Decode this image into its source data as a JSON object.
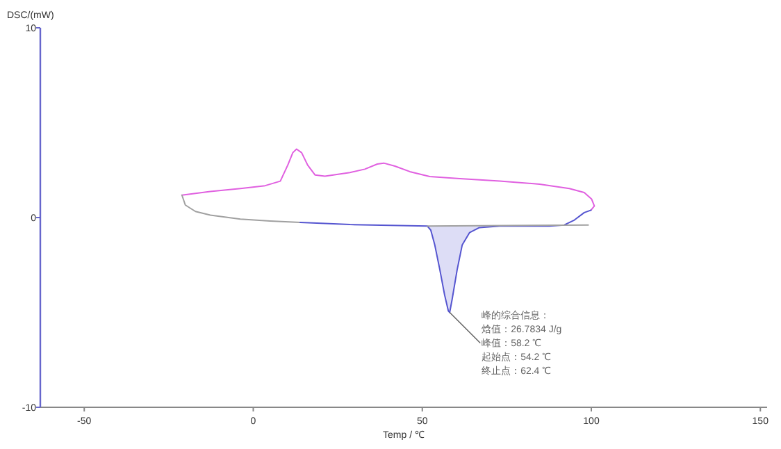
{
  "chart_data": {
    "type": "line",
    "xlabel": "Temp / ℃",
    "ylabel": "DSC/(mW)",
    "xlim": [
      -63,
      152
    ],
    "ylim": [
      -10,
      10
    ],
    "xticks": [
      -50,
      0,
      50,
      100,
      150
    ],
    "yticks": [
      -10,
      0,
      10
    ],
    "grid": false,
    "marker": "none",
    "line_style": "solid",
    "series": [
      {
        "color": "#e060e0",
        "x": [
          -21.1,
          -12.7,
          -3.8,
          3.5,
          8.0,
          10.2,
          11.7,
          12.8,
          14.3,
          16.1,
          18.3,
          21.2,
          28.6,
          33.0,
          36.7,
          38.6,
          41.9,
          46.3,
          52.2,
          61.1,
          72.9,
          84.7,
          93.5,
          97.9,
          100.1,
          100.9,
          99.9
        ],
        "values": [
          1.18,
          1.37,
          1.53,
          1.68,
          1.92,
          2.76,
          3.42,
          3.61,
          3.42,
          2.76,
          2.24,
          2.18,
          2.37,
          2.55,
          2.82,
          2.87,
          2.71,
          2.42,
          2.16,
          2.05,
          1.92,
          1.76,
          1.53,
          1.32,
          0.97,
          0.61,
          0.39
        ]
      },
      {
        "color": "#a0a0a0",
        "x": [
          -21.1,
          -20.1,
          -17.1,
          -12.7,
          -3.8,
          5.0,
          13.9
        ],
        "values": [
          1.18,
          0.66,
          0.32,
          0.13,
          -0.08,
          -0.18,
          -0.26
        ]
      },
      {
        "color": "#5555d0",
        "x": [
          13.9,
          28.6,
          43.4,
          51.5,
          52.5,
          53.7,
          55.2,
          56.6,
          57.7,
          58.1,
          58.8,
          60.3,
          61.8,
          64.0,
          66.9,
          72.9,
          87.6,
          92.0,
          95.0,
          97.9,
          99.9
        ],
        "values": [
          -0.26,
          -0.37,
          -0.42,
          -0.45,
          -0.66,
          -1.45,
          -2.76,
          -4.08,
          -4.92,
          -5.0,
          -4.34,
          -2.76,
          -1.45,
          -0.79,
          -0.53,
          -0.45,
          -0.45,
          -0.39,
          -0.13,
          0.26,
          0.39
        ],
        "lower": [
          null,
          null,
          null,
          -0.45,
          -0.66,
          -1.45,
          -2.76,
          -4.08,
          -4.92,
          -5.0,
          -4.34,
          -2.76,
          -1.45,
          -0.79,
          -0.53,
          null,
          null,
          null,
          null,
          null,
          null
        ],
        "upper": [
          null,
          null,
          null,
          -0.45,
          -0.45,
          -0.45,
          -0.45,
          -0.45,
          -0.45,
          -0.45,
          -0.45,
          -0.45,
          -0.45,
          -0.45,
          -0.45,
          null,
          null,
          null,
          null,
          null,
          null
        ]
      },
      {
        "color": "#a0a0a0",
        "x": [
          51.5,
          99.1
        ],
        "values": [
          -0.45,
          -0.39
        ]
      }
    ],
    "annotations": [
      "峰的综合信息：",
      "焓值：26.7834 J/g",
      {
        "text": "峰值：58.2 ℃",
        "x": 58.1,
        "y": -5.0
      },
      "起始点：54.2 ℃",
      "终止点：62.4 ℃"
    ]
  }
}
